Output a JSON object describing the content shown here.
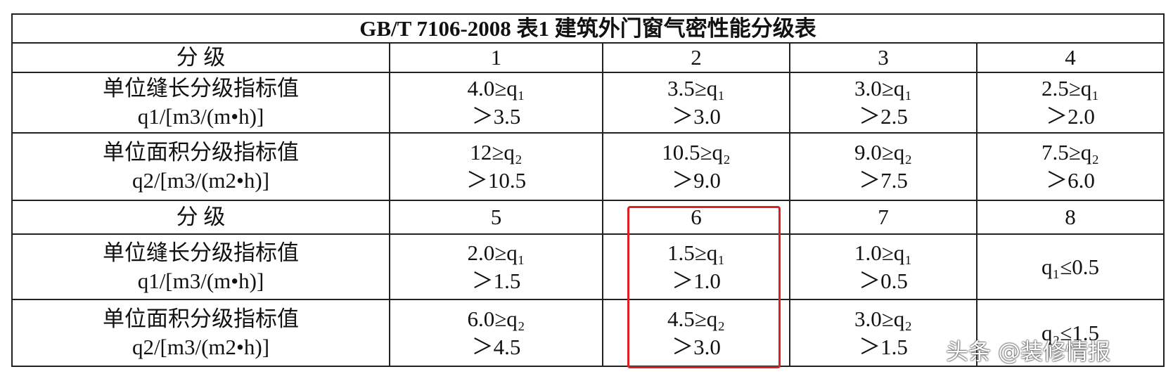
{
  "title": "GB/T 7106-2008 表1 建筑外门窗气密性能分级表",
  "rows": [
    {
      "label": [
        "分 级"
      ],
      "cells": [
        [
          "1"
        ],
        [
          "2"
        ],
        [
          "3"
        ],
        [
          "4"
        ]
      ]
    },
    {
      "label": [
        "单位缝长分级指标值",
        "q1/[m3/(m•h)]"
      ],
      "cells": [
        [
          "4.0≥q₁",
          "＞3.5"
        ],
        [
          "3.5≥q₁",
          "＞3.0"
        ],
        [
          "3.0≥q₁",
          "＞2.5"
        ],
        [
          "2.5≥q₁",
          "＞2.0"
        ]
      ]
    },
    {
      "label": [
        "单位面积分级指标值",
        "q2/[m3/(m2•h)]"
      ],
      "cells": [
        [
          "12≥q₂",
          "＞10.5"
        ],
        [
          "10.5≥q₂",
          "＞9.0"
        ],
        [
          "9.0≥q₂",
          "＞7.5"
        ],
        [
          "7.5≥q₂",
          "＞6.0"
        ]
      ]
    },
    {
      "label": [
        "分 级"
      ],
      "cells": [
        [
          "5"
        ],
        [
          "6"
        ],
        [
          "7"
        ],
        [
          "8"
        ]
      ]
    },
    {
      "label": [
        "单位缝长分级指标值",
        "q1/[m3/(m•h)]"
      ],
      "cells": [
        [
          "2.0≥q₁",
          "＞1.5"
        ],
        [
          "1.5≥q₁",
          "＞1.0"
        ],
        [
          "1.0≥q₁",
          "＞0.5"
        ],
        [
          "q₁≤0.5"
        ]
      ]
    },
    {
      "label": [
        "单位面积分级指标值",
        "q2/[m3/(m2•h)]"
      ],
      "cells": [
        [
          "6.0≥q₂",
          "＞4.5"
        ],
        [
          "4.5≥q₂",
          "＞3.0"
        ],
        [
          "3.0≥q₂",
          "＞1.5"
        ],
        [
          "q₂≤1.5"
        ]
      ]
    }
  ],
  "watermark": "头条 @装修情报"
}
